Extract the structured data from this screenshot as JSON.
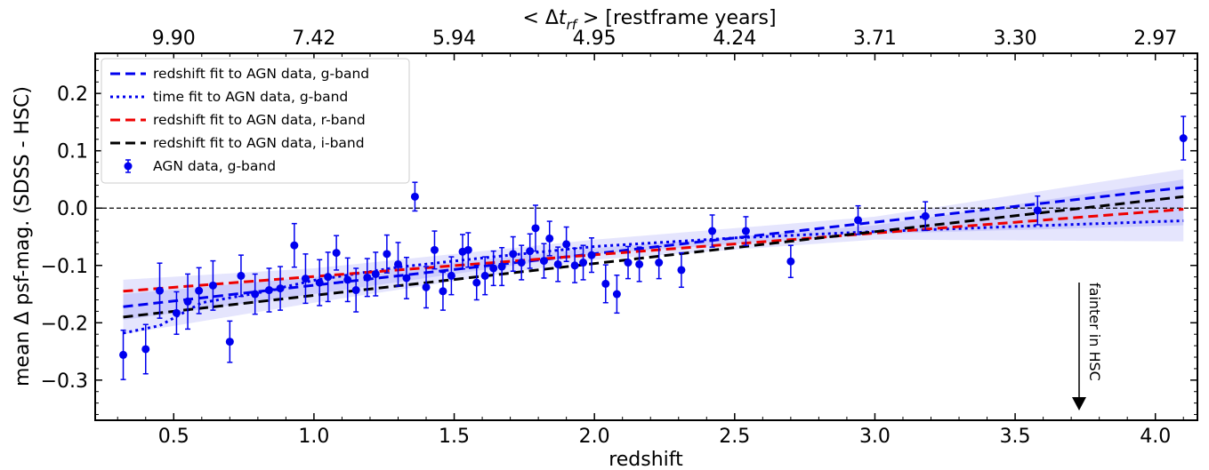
{
  "chart_data": {
    "type": "scatter",
    "xlabel": "redshift",
    "ylabel": "mean Δ psf-mag. (SDSS - HSC)",
    "top_axis_label": "< Δt_rf > [restframe years]",
    "top_axis_label_parts": {
      "pre": "< Δ",
      "t": "t",
      "sub": "rf",
      "post": " > [restframe years]"
    },
    "xlim": [
      0.22,
      4.15
    ],
    "ylim": [
      -0.37,
      0.27
    ],
    "x_ticks": [
      0.5,
      1.0,
      1.5,
      2.0,
      2.5,
      3.0,
      3.5,
      4.0
    ],
    "x_tick_labels": [
      "0.5",
      "1.0",
      "1.5",
      "2.0",
      "2.5",
      "3.0",
      "3.5",
      "4.0"
    ],
    "y_ticks": [
      -0.3,
      -0.2,
      -0.1,
      0.0,
      0.1,
      0.2
    ],
    "y_tick_labels": [
      "−0.3",
      "−0.2",
      "−0.1",
      "0.0",
      "0.1",
      "0.2"
    ],
    "top_ticks": [
      {
        "z": 0.5,
        "label": "9.90"
      },
      {
        "z": 1.0,
        "label": "7.42"
      },
      {
        "z": 1.5,
        "label": "5.94"
      },
      {
        "z": 2.0,
        "label": "4.95"
      },
      {
        "z": 2.5,
        "label": "4.24"
      },
      {
        "z": 3.0,
        "label": "3.71"
      },
      {
        "z": 3.5,
        "label": "3.30"
      },
      {
        "z": 4.0,
        "label": "2.97"
      }
    ],
    "reference_line_y": 0.0,
    "legend_position": "top-left",
    "series": [
      {
        "name": "redshift fit to AGN data, g-band",
        "style": "dashed",
        "color": "#0000ee",
        "x": [
          0.32,
          4.1
        ],
        "y": [
          -0.172,
          0.036
        ]
      },
      {
        "name": "time fit to AGN data, g-band",
        "style": "dotted",
        "color": "#0000ee",
        "x": [
          0.32,
          0.45,
          0.6,
          0.8,
          1.0,
          1.3,
          1.6,
          2.0,
          2.5,
          3.0,
          3.5,
          4.1
        ],
        "y": [
          -0.218,
          -0.205,
          -0.165,
          -0.148,
          -0.126,
          -0.103,
          -0.087,
          -0.067,
          -0.052,
          -0.041,
          -0.032,
          -0.022
        ]
      },
      {
        "name": "redshift fit to AGN data, r-band",
        "style": "dashed",
        "color": "#ee0000",
        "x": [
          0.32,
          4.1
        ],
        "y": [
          -0.145,
          -0.002
        ]
      },
      {
        "name": "redshift fit to AGN data, i-band",
        "style": "dashed",
        "color": "#000000",
        "x": [
          0.32,
          4.1
        ],
        "y": [
          -0.19,
          0.02
        ]
      },
      {
        "name": "AGN data, g-band",
        "style": "points-errorbars",
        "color": "#0000ee",
        "points": [
          {
            "x": 0.32,
            "y": -0.256,
            "err": 0.043
          },
          {
            "x": 0.4,
            "y": -0.246,
            "err": 0.043
          },
          {
            "x": 0.45,
            "y": -0.144,
            "err": 0.048
          },
          {
            "x": 0.51,
            "y": -0.183,
            "err": 0.037
          },
          {
            "x": 0.55,
            "y": -0.163,
            "err": 0.048
          },
          {
            "x": 0.59,
            "y": -0.144,
            "err": 0.04
          },
          {
            "x": 0.64,
            "y": -0.135,
            "err": 0.043
          },
          {
            "x": 0.7,
            "y": -0.233,
            "err": 0.036
          },
          {
            "x": 0.74,
            "y": -0.118,
            "err": 0.036
          },
          {
            "x": 0.79,
            "y": -0.15,
            "err": 0.035
          },
          {
            "x": 0.84,
            "y": -0.143,
            "err": 0.038
          },
          {
            "x": 0.88,
            "y": -0.14,
            "err": 0.038
          },
          {
            "x": 0.93,
            "y": -0.065,
            "err": 0.038
          },
          {
            "x": 0.97,
            "y": -0.123,
            "err": 0.043
          },
          {
            "x": 1.02,
            "y": -0.13,
            "err": 0.04
          },
          {
            "x": 1.05,
            "y": -0.12,
            "err": 0.043
          },
          {
            "x": 1.08,
            "y": -0.078,
            "err": 0.03
          },
          {
            "x": 1.12,
            "y": -0.125,
            "err": 0.038
          },
          {
            "x": 1.15,
            "y": -0.143,
            "err": 0.038
          },
          {
            "x": 1.19,
            "y": -0.121,
            "err": 0.033
          },
          {
            "x": 1.22,
            "y": -0.115,
            "err": 0.038
          },
          {
            "x": 1.26,
            "y": -0.08,
            "err": 0.033
          },
          {
            "x": 1.3,
            "y": -0.098,
            "err": 0.038
          },
          {
            "x": 1.33,
            "y": -0.122,
            "err": 0.036
          },
          {
            "x": 1.36,
            "y": 0.02,
            "err": 0.025
          },
          {
            "x": 1.4,
            "y": -0.138,
            "err": 0.036
          },
          {
            "x": 1.43,
            "y": -0.073,
            "err": 0.033
          },
          {
            "x": 1.46,
            "y": -0.145,
            "err": 0.033
          },
          {
            "x": 1.49,
            "y": -0.118,
            "err": 0.033
          },
          {
            "x": 1.53,
            "y": -0.076,
            "err": 0.03
          },
          {
            "x": 1.55,
            "y": -0.073,
            "err": 0.03
          },
          {
            "x": 1.58,
            "y": -0.13,
            "err": 0.03
          },
          {
            "x": 1.61,
            "y": -0.118,
            "err": 0.033
          },
          {
            "x": 1.64,
            "y": -0.105,
            "err": 0.03
          },
          {
            "x": 1.67,
            "y": -0.102,
            "err": 0.033
          },
          {
            "x": 1.71,
            "y": -0.08,
            "err": 0.03
          },
          {
            "x": 1.74,
            "y": -0.095,
            "err": 0.03
          },
          {
            "x": 1.77,
            "y": -0.075,
            "err": 0.03
          },
          {
            "x": 1.79,
            "y": -0.035,
            "err": 0.04
          },
          {
            "x": 1.82,
            "y": -0.092,
            "err": 0.03
          },
          {
            "x": 1.84,
            "y": -0.053,
            "err": 0.03
          },
          {
            "x": 1.87,
            "y": -0.098,
            "err": 0.03
          },
          {
            "x": 1.9,
            "y": -0.063,
            "err": 0.03
          },
          {
            "x": 1.93,
            "y": -0.1,
            "err": 0.03
          },
          {
            "x": 1.96,
            "y": -0.095,
            "err": 0.03
          },
          {
            "x": 1.99,
            "y": -0.082,
            "err": 0.03
          },
          {
            "x": 2.04,
            "y": -0.132,
            "err": 0.033
          },
          {
            "x": 2.08,
            "y": -0.15,
            "err": 0.033
          },
          {
            "x": 2.12,
            "y": -0.095,
            "err": 0.028
          },
          {
            "x": 2.16,
            "y": -0.098,
            "err": 0.03
          },
          {
            "x": 2.23,
            "y": -0.095,
            "err": 0.028
          },
          {
            "x": 2.31,
            "y": -0.108,
            "err": 0.03
          },
          {
            "x": 2.42,
            "y": -0.04,
            "err": 0.028
          },
          {
            "x": 2.54,
            "y": -0.04,
            "err": 0.025
          },
          {
            "x": 2.7,
            "y": -0.093,
            "err": 0.028
          },
          {
            "x": 2.94,
            "y": -0.021,
            "err": 0.025
          },
          {
            "x": 3.18,
            "y": -0.014,
            "err": 0.025
          },
          {
            "x": 3.58,
            "y": -0.004,
            "err": 0.025
          },
          {
            "x": 4.1,
            "y": 0.122,
            "err": 0.038
          }
        ]
      }
    ],
    "confidence_bands": [
      {
        "color": "#0000ee",
        "opacity": 0.1,
        "upper": [
          [
            0.32,
            -0.125
          ],
          [
            1.0,
            -0.105
          ],
          [
            2.0,
            -0.055
          ],
          [
            3.0,
            -0.015
          ],
          [
            4.1,
            0.068
          ]
        ],
        "lower": [
          [
            0.32,
            -0.22
          ],
          [
            1.0,
            -0.165
          ],
          [
            2.0,
            -0.09
          ],
          [
            3.0,
            -0.055
          ],
          [
            4.1,
            -0.058
          ]
        ]
      },
      {
        "color": "#0000ee",
        "opacity": 0.1,
        "upper": [
          [
            0.32,
            -0.15
          ],
          [
            1.0,
            -0.12
          ],
          [
            2.0,
            -0.07
          ],
          [
            3.0,
            -0.03
          ],
          [
            4.1,
            0.05
          ]
        ],
        "lower": [
          [
            0.32,
            -0.195
          ],
          [
            1.0,
            -0.15
          ],
          [
            2.0,
            -0.08
          ],
          [
            3.0,
            -0.045
          ],
          [
            4.1,
            -0.03
          ]
        ]
      }
    ],
    "annotations": [
      {
        "text": "fainter in HSC",
        "arrow": "down",
        "x": 3.75
      }
    ]
  }
}
